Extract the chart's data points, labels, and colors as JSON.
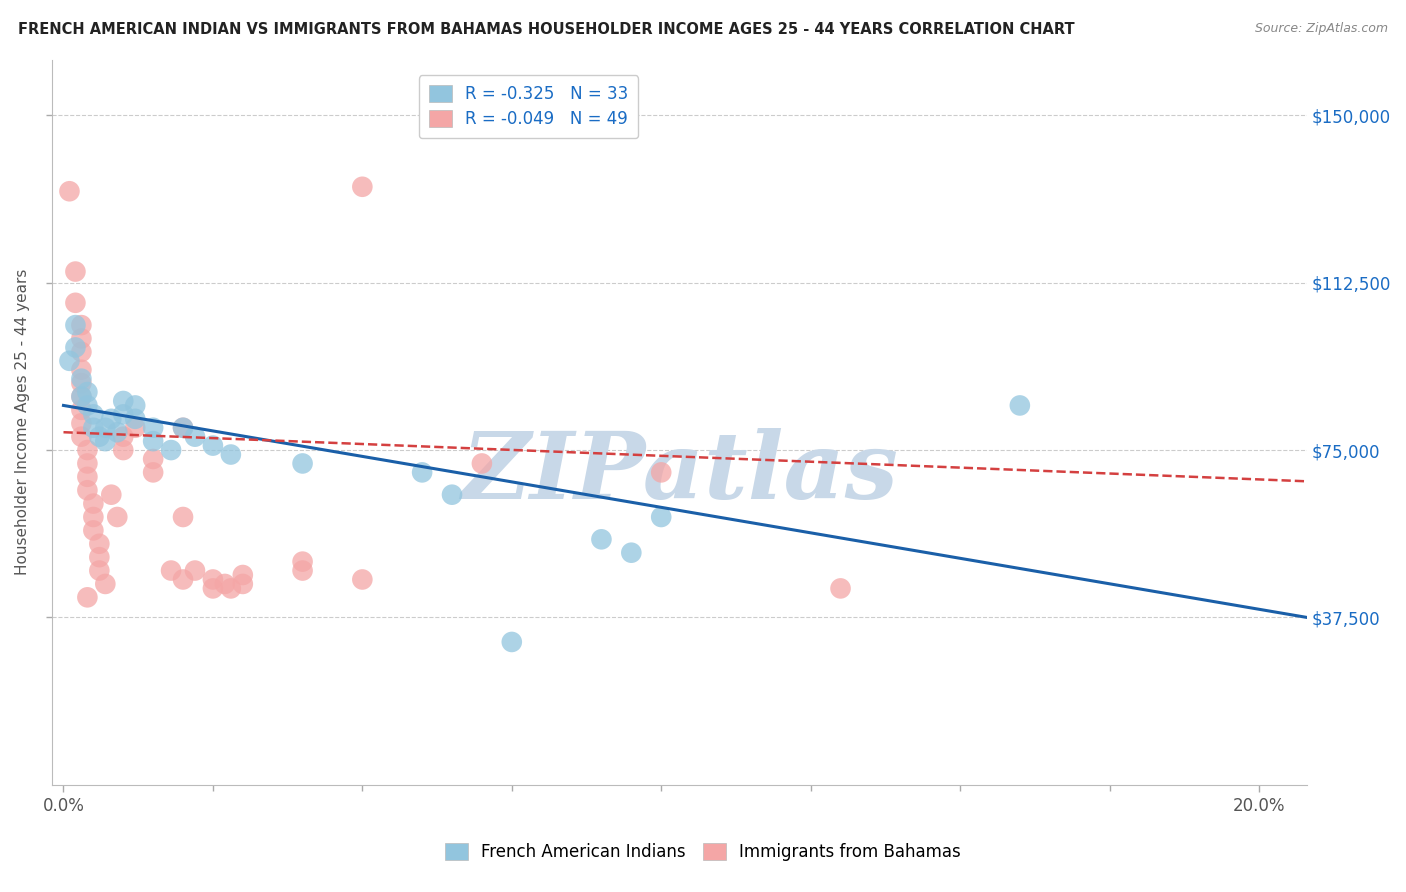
{
  "title": "FRENCH AMERICAN INDIAN VS IMMIGRANTS FROM BAHAMAS HOUSEHOLDER INCOME AGES 25 - 44 YEARS CORRELATION CHART",
  "source": "Source: ZipAtlas.com",
  "ylabel": "Householder Income Ages 25 - 44 years",
  "xlabel_ticks": [
    "0.0%",
    "20.0%"
  ],
  "xlabel_vals": [
    0.0,
    0.2
  ],
  "ytick_labels": [
    "$37,500",
    "$75,000",
    "$112,500",
    "$150,000"
  ],
  "ytick_vals": [
    37500,
    75000,
    112500,
    150000
  ],
  "ymin": 0,
  "ymax": 162500,
  "xmin": -0.002,
  "xmax": 0.208,
  "legend_blue_r": "R = -0.325",
  "legend_blue_n": "N = 33",
  "legend_pink_r": "R = -0.049",
  "legend_pink_n": "N = 49",
  "blue_color": "#92c5de",
  "pink_color": "#f4a6a6",
  "blue_line_color": "#1a5fa8",
  "pink_line_color": "#d44040",
  "watermark_text": "ZIPatlas",
  "watermark_color": "#c8d8e8",
  "blue_scatter": [
    [
      0.001,
      95000
    ],
    [
      0.002,
      103000
    ],
    [
      0.002,
      98000
    ],
    [
      0.003,
      91000
    ],
    [
      0.003,
      87000
    ],
    [
      0.004,
      88000
    ],
    [
      0.004,
      85000
    ],
    [
      0.005,
      83000
    ],
    [
      0.005,
      80000
    ],
    [
      0.006,
      78000
    ],
    [
      0.007,
      80000
    ],
    [
      0.007,
      77000
    ],
    [
      0.008,
      82000
    ],
    [
      0.009,
      79000
    ],
    [
      0.01,
      86000
    ],
    [
      0.01,
      83000
    ],
    [
      0.012,
      85000
    ],
    [
      0.012,
      82000
    ],
    [
      0.015,
      80000
    ],
    [
      0.015,
      77000
    ],
    [
      0.018,
      75000
    ],
    [
      0.02,
      80000
    ],
    [
      0.022,
      78000
    ],
    [
      0.025,
      76000
    ],
    [
      0.028,
      74000
    ],
    [
      0.04,
      72000
    ],
    [
      0.06,
      70000
    ],
    [
      0.065,
      65000
    ],
    [
      0.09,
      55000
    ],
    [
      0.095,
      52000
    ],
    [
      0.1,
      60000
    ],
    [
      0.16,
      85000
    ],
    [
      0.075,
      32000
    ]
  ],
  "pink_scatter": [
    [
      0.001,
      133000
    ],
    [
      0.002,
      115000
    ],
    [
      0.002,
      108000
    ],
    [
      0.003,
      103000
    ],
    [
      0.003,
      100000
    ],
    [
      0.003,
      97000
    ],
    [
      0.003,
      93000
    ],
    [
      0.003,
      90000
    ],
    [
      0.003,
      87000
    ],
    [
      0.003,
      84000
    ],
    [
      0.003,
      81000
    ],
    [
      0.003,
      78000
    ],
    [
      0.004,
      75000
    ],
    [
      0.004,
      72000
    ],
    [
      0.004,
      69000
    ],
    [
      0.004,
      66000
    ],
    [
      0.005,
      63000
    ],
    [
      0.005,
      60000
    ],
    [
      0.005,
      57000
    ],
    [
      0.006,
      54000
    ],
    [
      0.006,
      51000
    ],
    [
      0.006,
      48000
    ],
    [
      0.007,
      45000
    ],
    [
      0.008,
      65000
    ],
    [
      0.009,
      60000
    ],
    [
      0.01,
      78000
    ],
    [
      0.01,
      75000
    ],
    [
      0.012,
      80000
    ],
    [
      0.015,
      73000
    ],
    [
      0.015,
      70000
    ],
    [
      0.018,
      48000
    ],
    [
      0.02,
      46000
    ],
    [
      0.02,
      80000
    ],
    [
      0.022,
      48000
    ],
    [
      0.025,
      46000
    ],
    [
      0.025,
      44000
    ],
    [
      0.027,
      45000
    ],
    [
      0.028,
      44000
    ],
    [
      0.03,
      47000
    ],
    [
      0.03,
      45000
    ],
    [
      0.04,
      50000
    ],
    [
      0.04,
      48000
    ],
    [
      0.05,
      46000
    ],
    [
      0.05,
      134000
    ],
    [
      0.07,
      72000
    ],
    [
      0.1,
      70000
    ],
    [
      0.13,
      44000
    ],
    [
      0.02,
      60000
    ],
    [
      0.004,
      42000
    ]
  ],
  "blue_line_x": [
    0.0,
    0.208
  ],
  "blue_line_y": [
    85000,
    37500
  ],
  "pink_line_x": [
    0.0,
    0.208
  ],
  "pink_line_y": [
    79000,
    68000
  ]
}
